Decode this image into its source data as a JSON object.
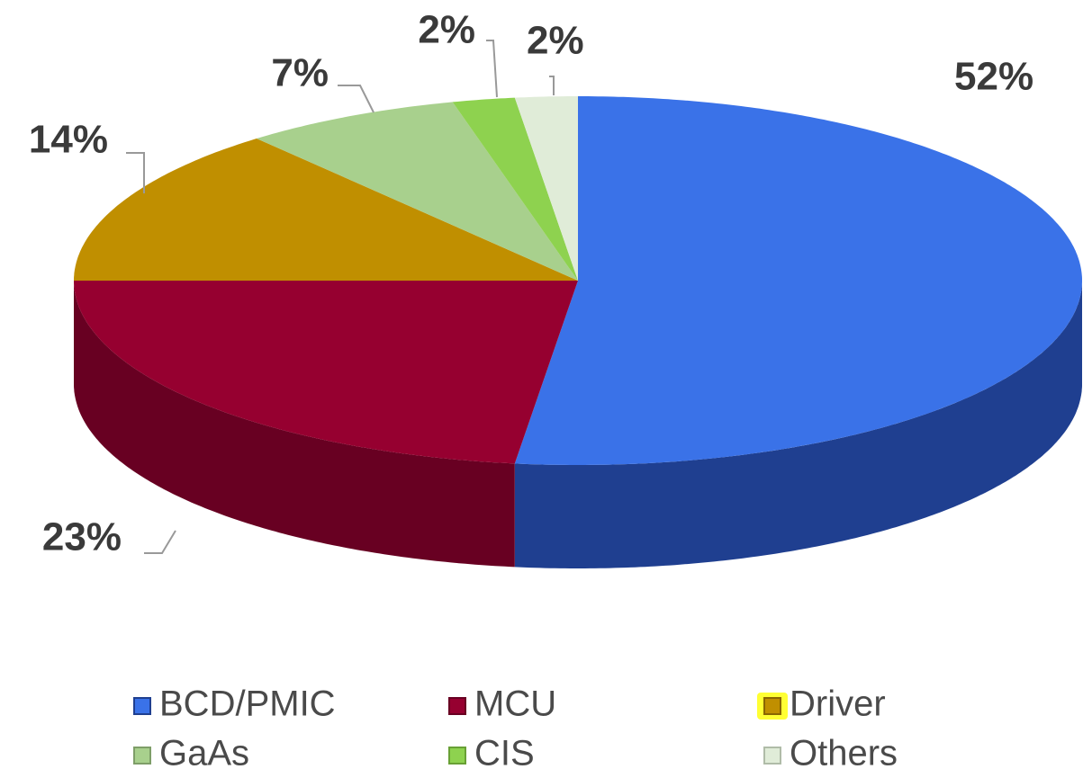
{
  "chart_data": {
    "type": "pie",
    "categories": [
      "BCD/PMIC",
      "MCU",
      "Driver",
      "GaAs",
      "CIS",
      "Others"
    ],
    "values": [
      52,
      23,
      14,
      7,
      2,
      2
    ],
    "value_labels": [
      "52%",
      "23%",
      "14%",
      "7%",
      "2%",
      "2%"
    ],
    "colors": [
      "#3a72e8",
      "#960030",
      "#c08f00",
      "#a8d08d",
      "#8ed24f",
      "#e0ecd8"
    ],
    "side_colors": [
      "#1f3f90",
      "#680022",
      "#8a6600",
      "#7e9e68",
      "#68a035",
      "#b0bca8"
    ],
    "legend": "bottom"
  }
}
